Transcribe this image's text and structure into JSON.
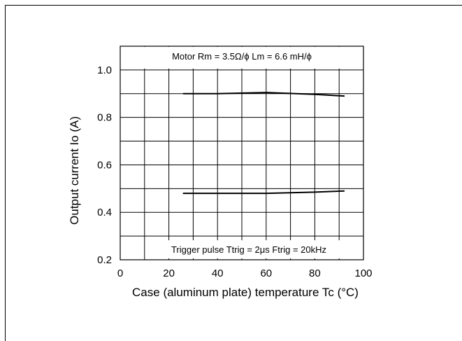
{
  "chart_data": {
    "type": "line",
    "xlabel": "Case (aluminum plate) temperature Tc (°C)",
    "ylabel": "Output current Io (A)",
    "xlim": [
      0,
      100
    ],
    "ylim": [
      0.2,
      1.1
    ],
    "x_ticks": [
      0,
      20,
      40,
      60,
      80,
      100
    ],
    "y_ticks": [
      0.2,
      0.4,
      0.6,
      0.8,
      1.0
    ],
    "x_tick_labels": [
      "0",
      "20",
      "40",
      "60",
      "80",
      "100"
    ],
    "y_tick_labels": [
      "0.2",
      "0.4",
      "0.6",
      "0.8",
      "1.0"
    ],
    "grid": true,
    "series": [
      {
        "x": [
          26,
          40,
          60,
          80,
          92
        ],
        "y": [
          0.9,
          0.9,
          0.905,
          0.897,
          0.89
        ]
      },
      {
        "x": [
          26,
          40,
          60,
          80,
          92
        ],
        "y": [
          0.48,
          0.48,
          0.48,
          0.485,
          0.49
        ]
      }
    ],
    "annotations": {
      "top": "Motor Rm = 3.5Ω/ϕ Lm = 6.6 mH/ϕ",
      "bottom": "Trigger pulse Ttrig = 2μs Ftrig = 20kHz"
    },
    "line_color": "#000000"
  }
}
